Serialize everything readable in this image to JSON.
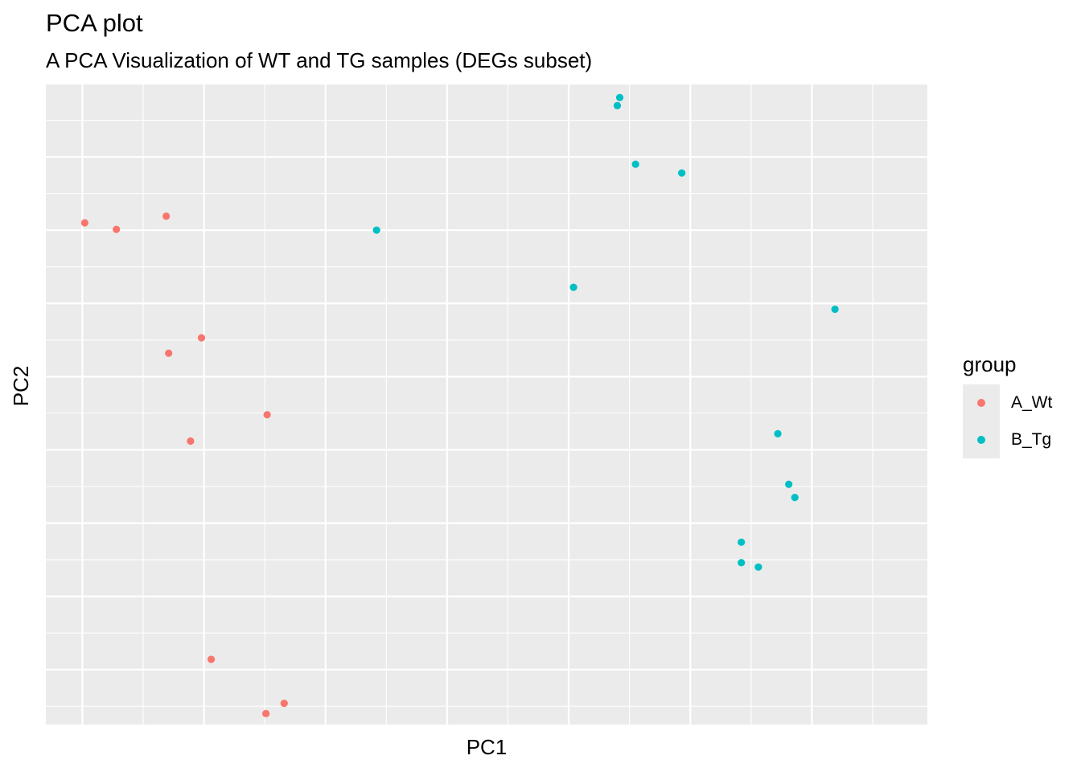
{
  "chart_data": {
    "type": "scatter",
    "title": "PCA plot",
    "subtitle": "A PCA Visualization of WT and TG samples (DEGs subset)",
    "xlabel": "PC1",
    "ylabel": "PC2",
    "xlim": [
      -1.3,
      5.95
    ],
    "ylim": [
      -4.75,
      4.0
    ],
    "grid": true,
    "tick_labels_shown": false,
    "legend_title": "group",
    "legend_position": "right",
    "series": [
      {
        "name": "A_Wt",
        "color": "#F8766D",
        "points": [
          {
            "x": -0.98,
            "y": 2.1
          },
          {
            "x": -0.72,
            "y": 2.01
          },
          {
            "x": -0.31,
            "y": 2.19
          },
          {
            "x": -0.29,
            "y": 0.32
          },
          {
            "x": -0.02,
            "y": 0.53
          },
          {
            "x": -0.11,
            "y": -0.88
          },
          {
            "x": 0.06,
            "y": -3.86
          },
          {
            "x": 0.52,
            "y": -0.52
          },
          {
            "x": 0.51,
            "y": -4.6
          },
          {
            "x": 0.66,
            "y": -4.46
          }
        ]
      },
      {
        "name": "B_Tg",
        "color": "#00BFC4",
        "points": [
          {
            "x": 1.42,
            "y": 2.0
          },
          {
            "x": 3.04,
            "y": 1.22
          },
          {
            "x": 3.4,
            "y": 3.7
          },
          {
            "x": 3.42,
            "y": 3.81
          },
          {
            "x": 3.55,
            "y": 2.9
          },
          {
            "x": 3.93,
            "y": 2.78
          },
          {
            "x": 4.42,
            "y": -2.26
          },
          {
            "x": 4.42,
            "y": -2.54
          },
          {
            "x": 4.56,
            "y": -2.6
          },
          {
            "x": 4.72,
            "y": -0.78
          },
          {
            "x": 4.81,
            "y": -1.47
          },
          {
            "x": 4.86,
            "y": -1.65
          },
          {
            "x": 5.19,
            "y": 0.92
          }
        ]
      }
    ]
  }
}
